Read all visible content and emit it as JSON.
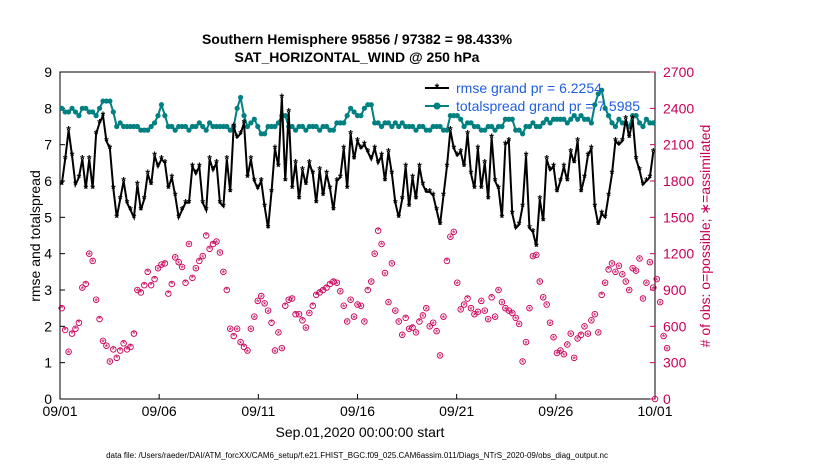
{
  "chart_data": {
    "type": "line",
    "title_line1": "Southern Hemisphere 95856 / 97382 = 98.433%",
    "title_line2": "SAT_HORIZONTAL_WIND @ 250 hPa",
    "xlabel": "Sep.01,2020 00:00:00 start",
    "ylabel_left": "rmse and totalspread",
    "ylabel_right": "# of obs: o=possible; ∗=assimilated",
    "xlim": [
      0,
      30
    ],
    "ylim_left": [
      0,
      9
    ],
    "ylim_right": [
      0,
      2700
    ],
    "x_tick_values": [
      0,
      5,
      10,
      15,
      20,
      25,
      30
    ],
    "x_tick_labels": [
      "09/01",
      "09/06",
      "09/11",
      "09/16",
      "09/21",
      "09/26",
      "10/01"
    ],
    "y_left_ticks": [
      "0",
      "1",
      "2",
      "3",
      "4",
      "5",
      "6",
      "7",
      "8",
      "9"
    ],
    "y_right_ticks": [
      "0",
      "300",
      "600",
      "900",
      "1200",
      "1500",
      "1800",
      "2100",
      "2400",
      "2700"
    ],
    "colors": {
      "rmse": "#000000",
      "spread": "#008080",
      "obs": "#c8005a",
      "legend_text": "#1f5fe0"
    },
    "series": [
      {
        "name": "rmse grand pr = 6.2254",
        "key": "rmse",
        "values": [
          5.9,
          6.6,
          7.4,
          6.7,
          5.9,
          6.1,
          6.6,
          5.8,
          6.6,
          5.8,
          7.3,
          7.6,
          7.8,
          7.1,
          6.9,
          5.8,
          5.0,
          5.5,
          6.0,
          5.4,
          5.2,
          5.0,
          5.9,
          5.2,
          5.5,
          6.2,
          5.9,
          6.7,
          6.4,
          6.6,
          6.5,
          5.8,
          6.1,
          5.6,
          5.0,
          5.2,
          5.4,
          5.4,
          6.4,
          6.2,
          6.4,
          5.4,
          5.2,
          6.6,
          6.3,
          6.5,
          5.4,
          5.3,
          6.6,
          5.7,
          7.5,
          7.2,
          7.3,
          7.6,
          6.1,
          6.6,
          6.0,
          5.8,
          6.0,
          5.3,
          4.7,
          5.7,
          6.9,
          6.4,
          8.3,
          6.0,
          7.9,
          5.8,
          6.5,
          5.5,
          6.3,
          5.9,
          6.5,
          6.2,
          5.4,
          6.3,
          5.6,
          6.2,
          5.8,
          5.2,
          6.0,
          6.1,
          6.9,
          5.8,
          7.3,
          6.6,
          7.1,
          6.9,
          7.0,
          6.8,
          6.6,
          6.9,
          6.5,
          6.7,
          6.0,
          6.8,
          6.2,
          5.4,
          5.0,
          5.5,
          6.4,
          5.3,
          6.1,
          5.5,
          6.4,
          5.9,
          5.7,
          5.7,
          5.6,
          5.2,
          4.8,
          5.6,
          6.4,
          7.4,
          6.9,
          6.7,
          6.8,
          6.4,
          7.3,
          6.2,
          5.8,
          6.9,
          5.8,
          6.5,
          5.5,
          7.2,
          6.0,
          5.8,
          5.0,
          7.0,
          7.1,
          5.1,
          4.7,
          4.8,
          5.3,
          6.7,
          4.7,
          4.6,
          4.2,
          5.5,
          4.9,
          6.6,
          6.3,
          6.4,
          5.7,
          6.0,
          6.4,
          6.0,
          6.8,
          6.5,
          7.1,
          5.7,
          6.1,
          6.7,
          6.9,
          5.3,
          4.8,
          5.1,
          5.0,
          5.6,
          6.2,
          7.1,
          7.0,
          7.1,
          7.7,
          7.2,
          7.7,
          6.6,
          6.3,
          5.9,
          6.0,
          6.1,
          6.8
        ],
        "grand_label": "rmse grand pr = 6.2254"
      },
      {
        "name": "totalspread grand pr = 7.5985",
        "key": "spread",
        "values": [
          8.0,
          7.9,
          7.9,
          8.0,
          7.9,
          7.8,
          8.0,
          8.0,
          7.9,
          7.9,
          7.8,
          8.0,
          8.2,
          8.2,
          8.2,
          7.9,
          7.5,
          7.6,
          7.5,
          7.5,
          7.5,
          7.5,
          7.5,
          7.4,
          7.4,
          7.4,
          7.5,
          7.6,
          7.8,
          8.1,
          7.8,
          7.5,
          7.5,
          7.4,
          7.5,
          7.5,
          7.5,
          7.4,
          7.5,
          7.5,
          7.6,
          7.5,
          7.4,
          7.6,
          7.5,
          7.5,
          7.5,
          7.5,
          7.5,
          7.4,
          7.5,
          8.0,
          8.3,
          7.8,
          7.5,
          7.6,
          7.7,
          7.5,
          7.3,
          7.3,
          7.5,
          7.5,
          7.5,
          7.6,
          7.8,
          7.8,
          7.5,
          7.5,
          7.4,
          7.5,
          7.5,
          7.4,
          7.5,
          7.5,
          7.5,
          7.4,
          7.5,
          7.5,
          7.4,
          7.4,
          7.6,
          7.6,
          7.6,
          7.8,
          8.0,
          7.9,
          7.8,
          7.8,
          8.0,
          8.1,
          8.1,
          7.6,
          7.6,
          7.5,
          7.6,
          7.6,
          7.5,
          7.6,
          7.5,
          7.6,
          7.5,
          7.5,
          7.5,
          7.4,
          7.5,
          7.5,
          7.4,
          7.4,
          7.5,
          7.5,
          7.5,
          7.4,
          7.4,
          7.8,
          7.8,
          7.8,
          7.7,
          7.5,
          7.6,
          7.6,
          7.5,
          7.5,
          7.4,
          7.4,
          7.5,
          7.5,
          7.4,
          7.5,
          7.5,
          7.7,
          7.7,
          7.7,
          7.4,
          7.4,
          7.3,
          7.5,
          7.5,
          7.6,
          7.5,
          7.5,
          7.6,
          7.7,
          7.6,
          7.7,
          7.7,
          7.7,
          7.7,
          7.6,
          7.7,
          7.8,
          7.7,
          7.8,
          7.7,
          7.7,
          7.6,
          8.1,
          8.4,
          8.5,
          8.0,
          7.8,
          7.6,
          7.5,
          7.7,
          7.6,
          7.6,
          7.5,
          7.8,
          7.8,
          7.6,
          7.5,
          7.7,
          7.6,
          7.6
        ],
        "grand_label": "totalspread grand pr = 7.5985"
      },
      {
        "name": "obs possible",
        "key": "obs",
        "values": [
          750,
          570,
          390,
          540,
          580,
          630,
          920,
          950,
          1200,
          1140,
          820,
          660,
          480,
          440,
          310,
          410,
          340,
          400,
          460,
          410,
          430,
          540,
          900,
          880,
          940,
          1050,
          940,
          990,
          1080,
          1110,
          1120,
          870,
          950,
          1170,
          1130,
          1090,
          960,
          1280,
          1000,
          1080,
          1140,
          1180,
          1350,
          1240,
          1280,
          1300,
          1210,
          1050,
          900,
          580,
          520,
          580,
          470,
          430,
          400,
          580,
          680,
          810,
          850,
          790,
          730,
          630,
          400,
          550,
          420,
          770,
          820,
          830,
          700,
          700,
          650,
          590,
          710,
          770,
          860,
          880,
          900,
          920,
          950,
          970,
          960,
          890,
          770,
          640,
          820,
          680,
          780,
          770,
          640,
          900,
          970,
          1200,
          1390,
          1280,
          1040,
          800,
          1120,
          730,
          640,
          530,
          670,
          580,
          590,
          550,
          640,
          690,
          750,
          600,
          630,
          560,
          360,
          680,
          1140,
          1340,
          1380,
          960,
          740,
          780,
          830,
          750,
          700,
          720,
          810,
          730,
          660,
          840,
          680,
          900,
          800,
          750,
          730,
          710,
          670,
          620,
          310,
          470,
          750,
          1180,
          1190,
          970,
          840,
          780,
          630,
          510,
          380,
          400,
          370,
          450,
          540,
          340,
          500,
          530,
          600,
          540,
          650,
          700,
          550,
          860,
          960,
          1070,
          1120,
          1050,
          1100,
          1030,
          970,
          900,
          1080,
          1060,
          1160,
          830,
          960,
          1130,
          920,
          990,
          800,
          520,
          420
        ],
        "values_assimilated": [
          750,
          570,
          380,
          540,
          580,
          630,
          910,
          950,
          1190,
          1130,
          810,
          660,
          470,
          430,
          300,
          410,
          340,
          400,
          460,
          410,
          430,
          540,
          890,
          880,
          940,
          1050,
          940,
          990,
          1070,
          1100,
          1120,
          870,
          950,
          1160,
          1120,
          1080,
          960,
          1270,
          1000,
          1070,
          1140,
          1170,
          1350,
          1240,
          1280,
          1290,
          1200,
          1040,
          900,
          570,
          520,
          570,
          460,
          430,
          390,
          570,
          670,
          800,
          840,
          780,
          720,
          630,
          390,
          540,
          410,
          770,
          810,
          820,
          700,
          690,
          650,
          580,
          700,
          770,
          860,
          880,
          900,
          920,
          950,
          970,
          950,
          880,
          760,
          630,
          810,
          670,
          770,
          760,
          630,
          900,
          960,
          1190,
          1390,
          1270,
          1030,
          790,
          1110,
          720,
          630,
          520,
          670,
          570,
          590,
          540,
          640,
          680,
          740,
          590,
          620,
          550,
          350,
          670,
          1140,
          1330,
          1370,
          950,
          730,
          770,
          830,
          740,
          690,
          710,
          800,
          720,
          650,
          840,
          670,
          890,
          790,
          740,
          720,
          700,
          660,
          610,
          300,
          460,
          740,
          1170,
          1180,
          960,
          830,
          770,
          620,
          500,
          370,
          390,
          360,
          440,
          530,
          330,
          490,
          530,
          590,
          530,
          640,
          690,
          540,
          860,
          950,
          1070,
          1110,
          1040,
          1090,
          1020,
          960,
          890,
          1070,
          1050,
          1150,
          820,
          950,
          1120,
          910,
          980,
          790,
          510,
          410
        ],
        "last_obs_possible": 0
      }
    ]
  },
  "footer_text": "data file: /Users/raeder/DAI/ATM_forcXX/CAM6_setup/f.e21.FHIST_BGC.f09_025.CAM6assim.011/Diags_NTrS_2020-09/obs_diag_output.nc"
}
